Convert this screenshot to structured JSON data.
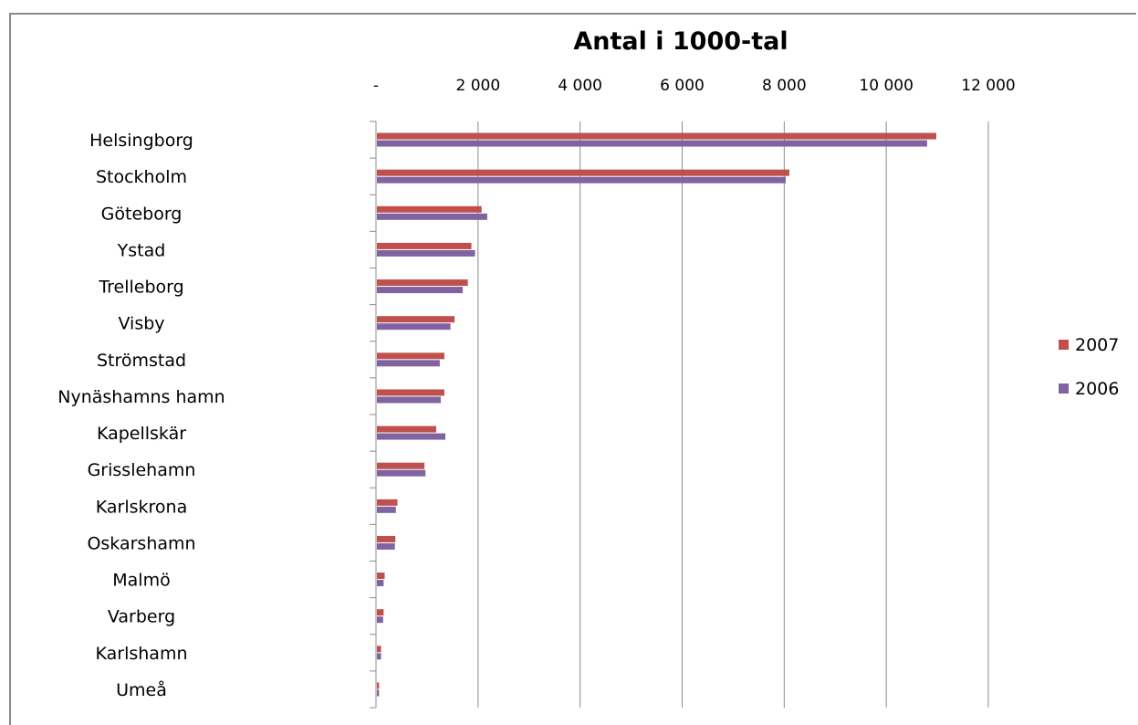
{
  "chart_data": {
    "type": "bar",
    "orientation": "horizontal",
    "title": "Antal i 1000-tal",
    "xlabel": "",
    "ylabel": "",
    "xlim": [
      0,
      12000
    ],
    "x_ticks": [
      0,
      2000,
      4000,
      6000,
      8000,
      10000,
      12000
    ],
    "x_tick_labels": [
      "-",
      "2 000",
      "4 000",
      "6 000",
      "8 000",
      "10 000",
      "12 000"
    ],
    "x_axis_position": "top",
    "grid": "vertical",
    "legend_position": "right",
    "categories": [
      "Helsingborg",
      "Stockholm",
      "Göteborg",
      "Ystad",
      "Trelleborg",
      "Visby",
      "Strömstad",
      "Nynäshamns hamn",
      "Kapellskär",
      "Grisslehamn",
      "Karlskrona",
      "Oskarshamn",
      "Malmö",
      "Varberg",
      "Karlshamn",
      "Umeå"
    ],
    "series": [
      {
        "name": "2007",
        "color": "#c0504d",
        "values": [
          10980,
          8100,
          2070,
          1870,
          1800,
          1540,
          1340,
          1340,
          1180,
          950,
          420,
          380,
          170,
          150,
          100,
          60
        ]
      },
      {
        "name": "2006",
        "color": "#8064a2",
        "values": [
          10800,
          8030,
          2180,
          1940,
          1700,
          1460,
          1250,
          1270,
          1360,
          970,
          390,
          370,
          150,
          140,
          100,
          60
        ]
      }
    ]
  }
}
